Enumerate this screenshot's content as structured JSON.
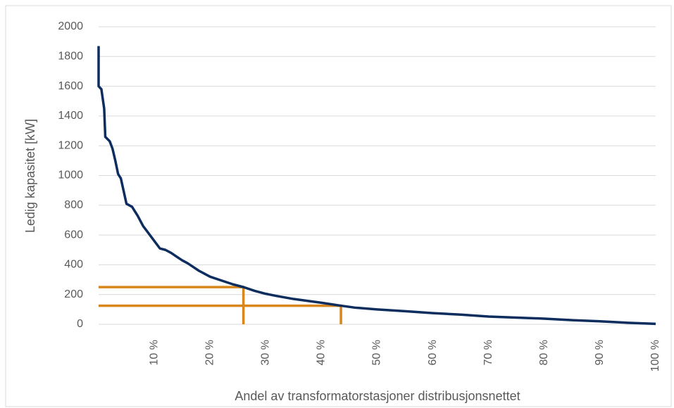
{
  "chart_data": {
    "type": "line",
    "x_label": "Andel av transformatorstasjoner distribusjonsnettet",
    "y_label": "Ledig kapasitet [kW]",
    "x": [
      0,
      0,
      0.5,
      1,
      1.2,
      2,
      2.5,
      3,
      3.5,
      4,
      5,
      6,
      7,
      8,
      9,
      10,
      11,
      12,
      13,
      14,
      15,
      16,
      17,
      18,
      19,
      20,
      22,
      24,
      26,
      28,
      30,
      32,
      35,
      38,
      40,
      43.5,
      46,
      50,
      55,
      60,
      65,
      70,
      75,
      80,
      85,
      90,
      95,
      100
    ],
    "series": [
      {
        "color": "#0d2d5e",
        "values": [
          1870,
          1600,
          1580,
          1450,
          1260,
          1230,
          1180,
          1100,
          1010,
          980,
          810,
          790,
          730,
          660,
          610,
          560,
          510,
          500,
          480,
          455,
          430,
          410,
          385,
          360,
          340,
          320,
          295,
          270,
          250,
          225,
          205,
          190,
          170,
          155,
          145,
          125,
          112,
          100,
          88,
          75,
          65,
          52,
          45,
          38,
          28,
          20,
          10,
          3
        ]
      }
    ],
    "reference_points": {
      "color": "#d9861c",
      "x": [
        26,
        43.5
      ],
      "y": [
        250,
        125
      ]
    },
    "xlim": [
      0,
      100
    ],
    "xticks": [
      {
        "value": 10,
        "label": "10 %"
      },
      {
        "value": 20,
        "label": "20 %"
      },
      {
        "value": 30,
        "label": "30 %"
      },
      {
        "value": 40,
        "label": "40 %"
      },
      {
        "value": 50,
        "label": "50 %"
      },
      {
        "value": 60,
        "label": "60 %"
      },
      {
        "value": 70,
        "label": "70 %"
      },
      {
        "value": 80,
        "label": "80 %"
      },
      {
        "value": 90,
        "label": "90 %"
      },
      {
        "value": 100,
        "label": "100 %"
      }
    ],
    "ylim": [
      0,
      2000
    ],
    "yticks": [
      0,
      200,
      400,
      600,
      800,
      1000,
      1200,
      1400,
      1600,
      1800,
      2000
    ],
    "grid": true
  }
}
